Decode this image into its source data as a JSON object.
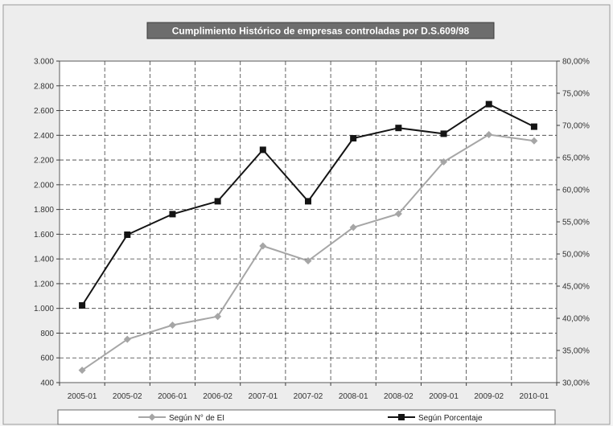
{
  "chart_data": {
    "type": "line",
    "title": "Cumplimiento Histórico de empresas controladas por D.S.609/98",
    "categories": [
      "2005-01",
      "2005-02",
      "2006-01",
      "2006-02",
      "2007-01",
      "2007-02",
      "2008-01",
      "2008-02",
      "2009-01",
      "2009-02",
      "2010-01"
    ],
    "left_axis": {
      "ylim": [
        400,
        3000
      ],
      "ticks": [
        "400",
        "600",
        "800",
        "1.000",
        "1.200",
        "1.400",
        "1.600",
        "1.800",
        "2.000",
        "2.200",
        "2.400",
        "2.600",
        "2.800",
        "3.000"
      ]
    },
    "right_axis": {
      "ylim": [
        30,
        80
      ],
      "ticks": [
        "30,00%",
        "35,00%",
        "40,00%",
        "45,00%",
        "50,00%",
        "55,00%",
        "60,00%",
        "65,00%",
        "70,00%",
        "75,00%",
        "80,00%"
      ]
    },
    "series": [
      {
        "name": "Según N° de EI",
        "axis": "left",
        "color": "#a6a6a6",
        "marker": "diamond",
        "values": [
          500,
          750,
          865,
          935,
          1505,
          1385,
          1655,
          1765,
          2185,
          2405,
          2355
        ]
      },
      {
        "name": "Según Porcentaje",
        "axis": "right",
        "color": "#141414",
        "marker": "square",
        "values": [
          42.0,
          53.0,
          56.2,
          58.2,
          66.2,
          58.2,
          68.0,
          69.6,
          68.7,
          73.3,
          69.8
        ]
      }
    ],
    "grid": true,
    "legend_position": "bottom"
  }
}
